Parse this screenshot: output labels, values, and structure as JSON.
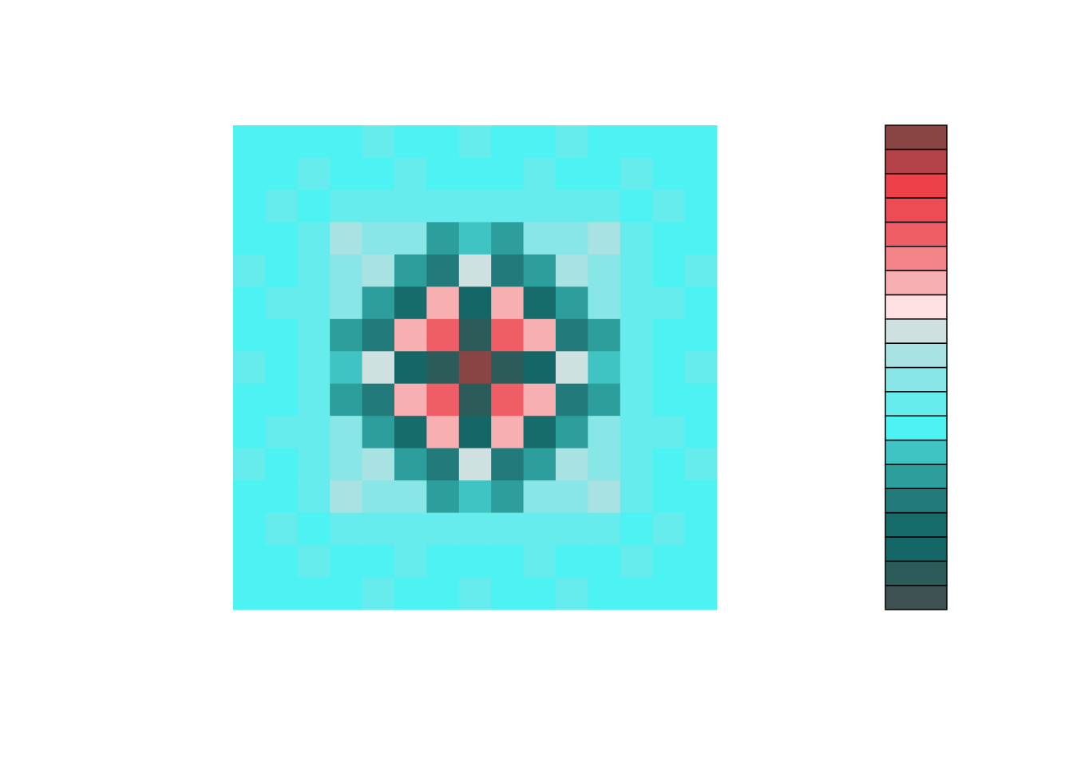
{
  "chart_data": {
    "type": "contour",
    "zlim": [
      0,
      20
    ],
    "levels": [
      0,
      1,
      2,
      3,
      4,
      5,
      6,
      7,
      8,
      9,
      10,
      11,
      12,
      13,
      14,
      15,
      16,
      17,
      18,
      19,
      20
    ],
    "colors": [
      "#3F5052",
      "#2C5C5A",
      "#146766",
      "#176B6B",
      "#227B7A",
      "#2C9E9C",
      "#40C3C3",
      "#4DF2F2",
      "#66ECEC",
      "#88E6E6",
      "#A8E2E2",
      "#CFE0E0",
      "#FFE0E3",
      "#F7AFB2",
      "#F28488",
      "#EF5E66",
      "#EE4C54",
      "#EE4049",
      "#B54247",
      "#8B4444"
    ],
    "z": [
      [
        7.5,
        7.5,
        7.5,
        7.5,
        8.5,
        7.5,
        7.5,
        8.5,
        7.5,
        7.5,
        8.5,
        7.5,
        7.5,
        7.5,
        7.5
      ],
      [
        7.5,
        7.5,
        8.5,
        7.5,
        7.5,
        8.5,
        7.5,
        7.5,
        7.5,
        8.5,
        7.5,
        7.5,
        8.5,
        7.5,
        7.5
      ],
      [
        7.5,
        8.5,
        7.5,
        8.5,
        8.5,
        8.5,
        8.5,
        8.5,
        8.5,
        8.5,
        8.5,
        8.5,
        7.5,
        8.5,
        7.5
      ],
      [
        7.5,
        7.5,
        8.5,
        10.5,
        9.5,
        9.5,
        5.5,
        6.5,
        5.5,
        9.5,
        9.5,
        10.5,
        8.5,
        7.5,
        7.5
      ],
      [
        8.5,
        7.5,
        8.5,
        9.5,
        10.5,
        5.5,
        4.5,
        11.5,
        4.5,
        5.5,
        10.5,
        9.5,
        8.5,
        7.5,
        8.5
      ],
      [
        7.5,
        8.5,
        8.5,
        9.5,
        5.5,
        3.5,
        13.5,
        2.5,
        13.5,
        3.5,
        5.5,
        9.5,
        8.5,
        8.5,
        7.5
      ],
      [
        7.5,
        7.5,
        8.5,
        5.5,
        4.5,
        13.5,
        15.5,
        1.5,
        15.5,
        13.5,
        4.5,
        5.5,
        8.5,
        7.5,
        7.5
      ],
      [
        8.5,
        7.5,
        8.5,
        6.5,
        11.5,
        2.5,
        1.5,
        19.5,
        1.5,
        2.5,
        11.5,
        6.5,
        8.5,
        7.5,
        8.5
      ],
      [
        7.5,
        7.5,
        8.5,
        5.5,
        4.5,
        13.5,
        15.5,
        1.5,
        15.5,
        13.5,
        4.5,
        5.5,
        8.5,
        7.5,
        7.5
      ],
      [
        7.5,
        8.5,
        8.5,
        9.5,
        5.5,
        3.5,
        13.5,
        2.5,
        13.5,
        3.5,
        5.5,
        9.5,
        8.5,
        8.5,
        7.5
      ],
      [
        8.5,
        7.5,
        8.5,
        9.5,
        10.5,
        5.5,
        4.5,
        11.5,
        4.5,
        5.5,
        10.5,
        9.5,
        8.5,
        7.5,
        8.5
      ],
      [
        7.5,
        7.5,
        8.5,
        10.5,
        9.5,
        9.5,
        5.5,
        6.5,
        5.5,
        9.5,
        9.5,
        10.5,
        8.5,
        7.5,
        7.5
      ],
      [
        7.5,
        8.5,
        7.5,
        8.5,
        8.5,
        8.5,
        8.5,
        8.5,
        8.5,
        8.5,
        8.5,
        8.5,
        7.5,
        8.5,
        7.5
      ],
      [
        7.5,
        7.5,
        8.5,
        7.5,
        7.5,
        8.5,
        7.5,
        7.5,
        7.5,
        8.5,
        7.5,
        7.5,
        8.5,
        7.5,
        7.5
      ],
      [
        7.5,
        7.5,
        7.5,
        7.5,
        8.5,
        7.5,
        7.5,
        8.5,
        7.5,
        7.5,
        8.5,
        7.5,
        7.5,
        7.5,
        7.5
      ]
    ]
  }
}
